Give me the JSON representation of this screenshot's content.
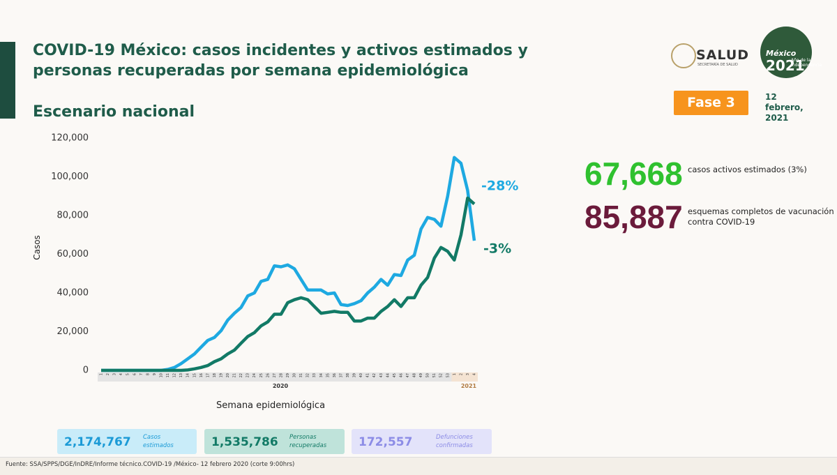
{
  "header": {
    "title": "COVID-19 México: casos incidentes y activos estimados y personas recuperadas por semana epidemiológica",
    "logo": "SALUD",
    "logo_subtitle": "SECRETARÍA DE SALUD",
    "badge_word": "México",
    "badge_year": "2021",
    "badge_subtitle": "Año de la Independencia",
    "phase": "Fase 3",
    "date": "12 febrero, 2021"
  },
  "chart_data": {
    "type": "line",
    "subtitle": "Escenario nacional",
    "x_label": "Semana epidemiológica",
    "y_label": "Casos",
    "categories": [
      "1",
      "2",
      "3",
      "4",
      "5",
      "6",
      "7",
      "8",
      "9",
      "10",
      "11",
      "12",
      "13",
      "14",
      "15",
      "16",
      "17",
      "18",
      "19",
      "20",
      "21",
      "22",
      "23",
      "24",
      "25",
      "26",
      "27",
      "28",
      "29",
      "30",
      "31",
      "32",
      "33",
      "34",
      "35",
      "36",
      "37",
      "38",
      "39",
      "40",
      "41",
      "42",
      "43",
      "44",
      "45",
      "46",
      "47",
      "48",
      "49",
      "50",
      "51",
      "52",
      "53",
      "1",
      "2",
      "3",
      "4"
    ],
    "year_labels": [
      "2020",
      "2021"
    ],
    "series": [
      {
        "color": "#1ea9e1",
        "values": [
          0,
          0,
          0,
          0,
          0,
          0,
          0,
          0,
          0,
          0,
          500,
          1500,
          3500,
          6000,
          8500,
          12000,
          15500,
          17000,
          20500,
          26000,
          29500,
          32500,
          38500,
          40000,
          46000,
          47000,
          54000,
          53500,
          54500,
          52500,
          47000,
          41500,
          41500,
          41500,
          39500,
          40000,
          34000,
          33500,
          34500,
          36000,
          40000,
          43000,
          47000,
          44000,
          49500,
          49000,
          57000,
          59500,
          73000,
          79000,
          78000,
          74500,
          90000,
          110000,
          107000,
          93000,
          67000
        ]
      },
      {
        "color": "#127a66",
        "values": [
          0,
          0,
          0,
          0,
          0,
          0,
          0,
          0,
          0,
          0,
          0,
          0,
          0,
          200,
          800,
          1500,
          2500,
          4500,
          6000,
          8500,
          10500,
          14000,
          17500,
          19500,
          23000,
          25000,
          29000,
          29000,
          35000,
          36500,
          37500,
          36500,
          33000,
          29500,
          30000,
          30500,
          30000,
          30000,
          25500,
          25500,
          27000,
          27000,
          30500,
          33000,
          36500,
          33000,
          37500,
          37500,
          44000,
          48000,
          58000,
          63500,
          61500,
          57000,
          70000,
          89000,
          86000
        ]
      }
    ],
    "ylim": [
      0,
      120000
    ],
    "yticks": [
      0,
      {
        "value": 20000,
        "label": "20,000"
      },
      {
        "value": 40000,
        "label": "40,000"
      },
      {
        "value": 60000,
        "label": "60,000"
      },
      {
        "value": 80000,
        "label": "80,000"
      },
      {
        "value": 100000,
        "label": "100,000"
      },
      {
        "value": 120000,
        "label": "120,000"
      }
    ],
    "annotations": [
      {
        "text": "-28%",
        "color": "#1ea9e1"
      },
      {
        "text": "-3%",
        "color": "#127a66"
      }
    ]
  },
  "stats": [
    {
      "value": "67,668",
      "label": "casos activos estimados (3%)",
      "color": "#2fc12f"
    },
    {
      "value": "85,887",
      "label": "esquemas completos de vacunación contra COVID-19",
      "color": "#6b1b3b"
    }
  ],
  "summary": [
    {
      "value": "2,174,767",
      "label": "Casos estimados"
    },
    {
      "value": "1,535,786",
      "label": "Personas recuperadas"
    },
    {
      "value": "172,557",
      "label": "Defunciones confirmadas"
    }
  ],
  "footer": {
    "source": "Fuente: SSA/SPPS/DGE/InDRE/Informe técnico.COVID-19 /México- 12 febrero 2020 (corte 9:00hrs)"
  }
}
